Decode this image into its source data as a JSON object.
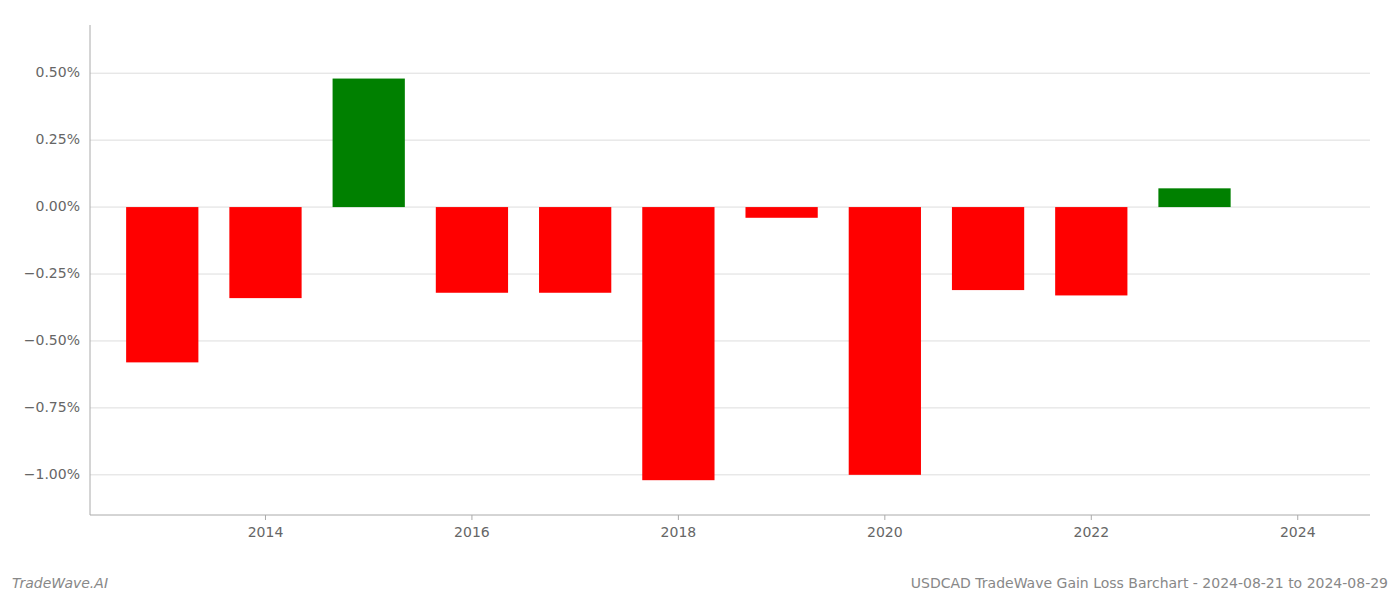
{
  "chart_data": {
    "type": "bar",
    "title": "USDCAD TradeWave Gain Loss Barchart - 2024-08-21 to 2024-08-29",
    "annotations": [
      "TradeWave.AI"
    ],
    "x": [
      2013,
      2014,
      2015,
      2016,
      2017,
      2018,
      2019,
      2020,
      2021,
      2022,
      2023
    ],
    "values": [
      -0.58,
      -0.34,
      0.48,
      -0.32,
      -0.32,
      -1.02,
      -0.04,
      -1.0,
      -0.31,
      -0.33,
      0.07
    ],
    "colors": [
      "#ff0000",
      "#ff0000",
      "#008000",
      "#ff0000",
      "#ff0000",
      "#ff0000",
      "#ff0000",
      "#ff0000",
      "#ff0000",
      "#ff0000",
      "#008000"
    ],
    "ylim": [
      -1.15,
      0.68
    ],
    "yticks": [
      {
        "value": -1.0,
        "label": "−1.00%"
      },
      {
        "value": -0.75,
        "label": "−0.75%"
      },
      {
        "value": -0.5,
        "label": "−0.50%"
      },
      {
        "value": -0.25,
        "label": "−0.25%"
      },
      {
        "value": 0.0,
        "label": "0.00%"
      },
      {
        "value": 0.25,
        "label": "0.25%"
      },
      {
        "value": 0.5,
        "label": "0.50%"
      }
    ],
    "xlim": [
      2012.3,
      2024.7
    ],
    "xticks": [
      2014,
      2016,
      2018,
      2020,
      2022,
      2024
    ],
    "grid": true
  }
}
